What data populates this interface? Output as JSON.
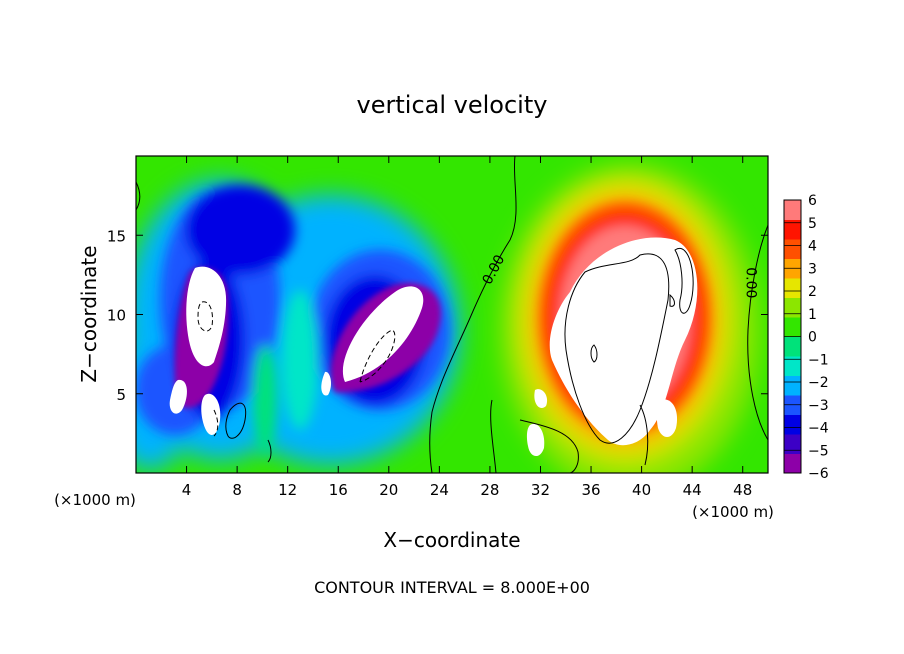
{
  "chart_data": {
    "type": "heatmap",
    "title": "vertical velocity",
    "xlabel": "X−coordinate",
    "ylabel": "Z−coordinate",
    "x_unit": "(×1000 m)",
    "x_unit_right": "(×1000 m)",
    "xlim": [
      0,
      50
    ],
    "ylim": [
      0,
      20
    ],
    "x_ticks": [
      4,
      8,
      12,
      16,
      20,
      24,
      28,
      32,
      36,
      40,
      44,
      48
    ],
    "y_ticks": [
      5,
      10,
      15
    ],
    "colorbar": {
      "ticks": [
        6,
        5,
        4,
        3,
        2,
        1,
        0,
        -1,
        -2,
        -3,
        -4,
        -5,
        -6
      ],
      "tick_labels": [
        "6",
        "5",
        "4",
        "3",
        "2",
        "1",
        "0",
        "−1",
        "−2",
        "−3",
        "−4",
        "−5",
        "−6"
      ],
      "colors": [
        "#8d00a8",
        "#3c00c6",
        "#0000e4",
        "#1b55ff",
        "#00b2ff",
        "#00e6c8",
        "#00e27a",
        "#33e600",
        "#8ce600",
        "#e6e600",
        "#ffa500",
        "#ff5000",
        "#ff1400",
        "#ff7a7a"
      ]
    },
    "contour_labels": [
      {
        "text": "0.00",
        "x": 28.6,
        "y": 12.7,
        "rotate": -62
      },
      {
        "text": "0.00",
        "x": 48.3,
        "y": 12.0,
        "rotate": 90
      }
    ],
    "grid": false,
    "legend": "colorbar right"
  },
  "footer": {
    "contour_interval": "CONTOUR INTERVAL = 8.000E+00"
  }
}
